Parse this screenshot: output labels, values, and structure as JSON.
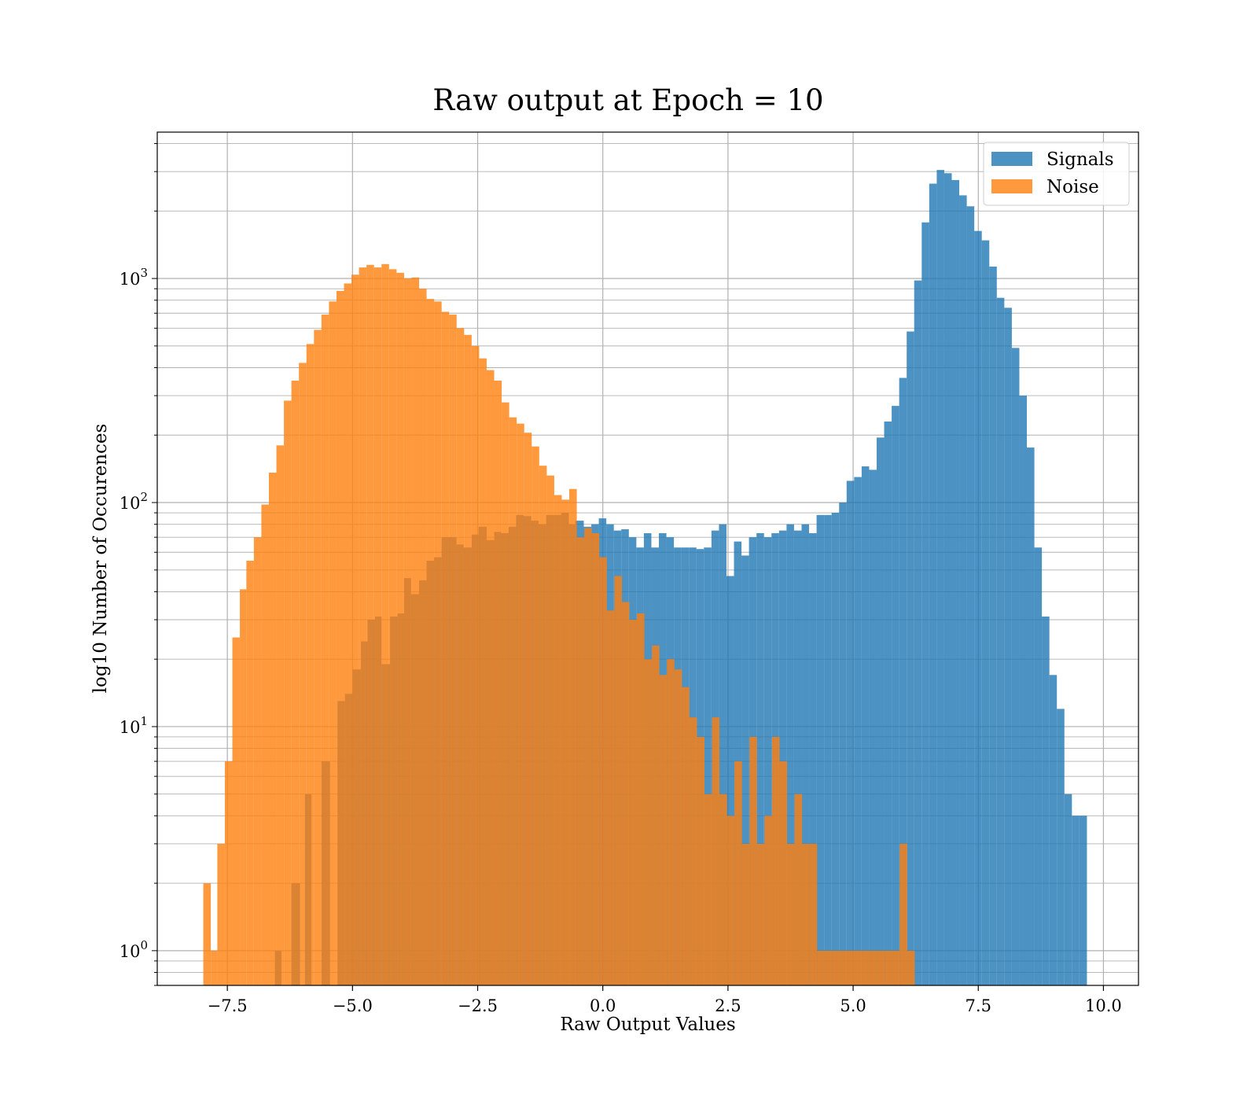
{
  "chart_data": {
    "type": "bar",
    "title": "Raw output at Epoch = 10",
    "xlabel": "Raw Output Values",
    "ylabel": "log10 Number of Occurences",
    "yscale": "log",
    "xlim": [
      -8.9,
      10.7
    ],
    "ylim": [
      0.7,
      4500
    ],
    "grid": true,
    "legend_position": "top-right",
    "x_ticks": [
      -7.5,
      -5.0,
      -2.5,
      0.0,
      2.5,
      5.0,
      7.5,
      10.0
    ],
    "x_tick_labels": [
      "−7.5",
      "−5.0",
      "−2.5",
      "0.0",
      "2.5",
      "5.0",
      "7.5",
      "10.0"
    ],
    "y_ticks": [
      1,
      10,
      100,
      1000
    ],
    "y_tick_labels": [
      {
        "base": "10",
        "exp": "0"
      },
      {
        "base": "10",
        "exp": "1"
      },
      {
        "base": "10",
        "exp": "2"
      },
      {
        "base": "10",
        "exp": "3"
      }
    ],
    "series": [
      {
        "name": "Signals",
        "color": "#1f77b4",
        "opacity": 0.8,
        "bins": [
          [
            -6.55,
            -6.42,
            1
          ],
          [
            -6.22,
            -6.05,
            2
          ],
          [
            -5.95,
            -5.82,
            5
          ],
          [
            -5.62,
            -5.45,
            7
          ],
          [
            -5.3,
            -5.15,
            13
          ],
          [
            -5.15,
            -5.0,
            14
          ],
          [
            -5.0,
            -4.83,
            18
          ],
          [
            -4.83,
            -4.7,
            24
          ],
          [
            -4.7,
            -4.55,
            30
          ],
          [
            -4.55,
            -4.42,
            31
          ],
          [
            -4.42,
            -4.25,
            19
          ],
          [
            -4.25,
            -4.1,
            31
          ],
          [
            -4.1,
            -3.97,
            32
          ],
          [
            -3.97,
            -3.83,
            46
          ],
          [
            -3.83,
            -3.67,
            39
          ],
          [
            -3.67,
            -3.52,
            45
          ],
          [
            -3.52,
            -3.37,
            55
          ],
          [
            -3.37,
            -3.22,
            57
          ],
          [
            -3.22,
            -3.08,
            70
          ],
          [
            -3.08,
            -2.92,
            70
          ],
          [
            -2.92,
            -2.78,
            65
          ],
          [
            -2.78,
            -2.62,
            63
          ],
          [
            -2.62,
            -2.48,
            72
          ],
          [
            -2.48,
            -2.32,
            78
          ],
          [
            -2.32,
            -2.17,
            68
          ],
          [
            -2.17,
            -2.03,
            74
          ],
          [
            -2.03,
            -1.88,
            73
          ],
          [
            -1.88,
            -1.73,
            78
          ],
          [
            -1.73,
            -1.58,
            88
          ],
          [
            -1.58,
            -1.43,
            87
          ],
          [
            -1.43,
            -1.28,
            83
          ],
          [
            -1.28,
            -1.13,
            80
          ],
          [
            -1.13,
            -0.98,
            88
          ],
          [
            -0.98,
            -0.83,
            88
          ],
          [
            -0.83,
            -0.68,
            90
          ],
          [
            -0.68,
            -0.55,
            80
          ],
          [
            -0.55,
            -0.38,
            83
          ],
          [
            -0.38,
            -0.23,
            78
          ],
          [
            -0.23,
            -0.08,
            80
          ],
          [
            -0.08,
            0.07,
            85
          ],
          [
            0.07,
            0.22,
            80
          ],
          [
            0.22,
            0.37,
            75
          ],
          [
            0.37,
            0.52,
            76
          ],
          [
            0.52,
            0.67,
            70
          ],
          [
            0.67,
            0.82,
            63
          ],
          [
            0.82,
            0.97,
            73
          ],
          [
            0.97,
            1.12,
            63
          ],
          [
            1.12,
            1.27,
            73
          ],
          [
            1.27,
            1.42,
            70
          ],
          [
            1.42,
            1.57,
            63
          ],
          [
            1.57,
            1.72,
            63
          ],
          [
            1.72,
            1.87,
            63
          ],
          [
            1.87,
            2.02,
            62
          ],
          [
            2.02,
            2.17,
            63
          ],
          [
            2.17,
            2.32,
            75
          ],
          [
            2.32,
            2.47,
            80
          ],
          [
            2.47,
            2.62,
            47
          ],
          [
            2.62,
            2.77,
            67
          ],
          [
            2.77,
            2.92,
            58
          ],
          [
            2.92,
            3.07,
            70
          ],
          [
            3.07,
            3.22,
            73
          ],
          [
            3.22,
            3.37,
            70
          ],
          [
            3.37,
            3.52,
            73
          ],
          [
            3.52,
            3.67,
            75
          ],
          [
            3.67,
            3.82,
            80
          ],
          [
            3.82,
            3.97,
            75
          ],
          [
            3.97,
            4.12,
            80
          ],
          [
            4.12,
            4.27,
            73
          ],
          [
            4.27,
            4.42,
            88
          ],
          [
            4.42,
            4.57,
            88
          ],
          [
            4.57,
            4.72,
            90
          ],
          [
            4.72,
            4.87,
            100
          ],
          [
            4.87,
            5.02,
            125
          ],
          [
            5.02,
            5.17,
            130
          ],
          [
            5.17,
            5.32,
            145
          ],
          [
            5.32,
            5.47,
            140
          ],
          [
            5.47,
            5.62,
            195
          ],
          [
            5.62,
            5.77,
            230
          ],
          [
            5.77,
            5.92,
            270
          ],
          [
            5.92,
            6.07,
            360
          ],
          [
            6.07,
            6.22,
            580
          ],
          [
            6.22,
            6.37,
            980
          ],
          [
            6.37,
            6.52,
            1780
          ],
          [
            6.52,
            6.67,
            2650
          ],
          [
            6.67,
            6.82,
            3050
          ],
          [
            6.82,
            6.97,
            2950
          ],
          [
            6.97,
            7.12,
            2750
          ],
          [
            7.12,
            7.27,
            2350
          ],
          [
            7.27,
            7.42,
            2100
          ],
          [
            7.42,
            7.57,
            1630
          ],
          [
            7.57,
            7.72,
            1480
          ],
          [
            7.72,
            7.87,
            1130
          ],
          [
            7.87,
            8.02,
            820
          ],
          [
            8.02,
            8.17,
            740
          ],
          [
            8.17,
            8.32,
            490
          ],
          [
            8.32,
            8.47,
            300
          ],
          [
            8.47,
            8.62,
            176
          ],
          [
            8.62,
            8.77,
            63
          ],
          [
            8.77,
            8.92,
            31
          ],
          [
            8.92,
            9.07,
            17
          ],
          [
            9.07,
            9.22,
            12
          ],
          [
            9.22,
            9.37,
            5
          ],
          [
            9.37,
            9.52,
            4
          ],
          [
            9.52,
            9.67,
            4
          ]
        ]
      },
      {
        "name": "Noise",
        "color": "#ff7f0e",
        "opacity": 0.8,
        "bins": [
          [
            -7.98,
            -7.83,
            2
          ],
          [
            -7.83,
            -7.7,
            1
          ],
          [
            -7.7,
            -7.55,
            3
          ],
          [
            -7.55,
            -7.4,
            7
          ],
          [
            -7.4,
            -7.25,
            25
          ],
          [
            -7.25,
            -7.12,
            41
          ],
          [
            -7.12,
            -6.97,
            55
          ],
          [
            -6.97,
            -6.82,
            70
          ],
          [
            -6.82,
            -6.67,
            98
          ],
          [
            -6.67,
            -6.52,
            136
          ],
          [
            -6.52,
            -6.37,
            180
          ],
          [
            -6.37,
            -6.22,
            285
          ],
          [
            -6.22,
            -6.07,
            350
          ],
          [
            -6.07,
            -5.92,
            420
          ],
          [
            -5.92,
            -5.77,
            510
          ],
          [
            -5.77,
            -5.62,
            590
          ],
          [
            -5.62,
            -5.47,
            690
          ],
          [
            -5.47,
            -5.32,
            790
          ],
          [
            -5.32,
            -5.17,
            880
          ],
          [
            -5.17,
            -5.02,
            950
          ],
          [
            -5.02,
            -4.87,
            1040
          ],
          [
            -4.87,
            -4.72,
            1120
          ],
          [
            -4.72,
            -4.57,
            1150
          ],
          [
            -4.57,
            -4.42,
            1120
          ],
          [
            -4.42,
            -4.27,
            1160
          ],
          [
            -4.27,
            -4.12,
            1100
          ],
          [
            -4.12,
            -3.97,
            1060
          ],
          [
            -3.97,
            -3.82,
            1000
          ],
          [
            -3.82,
            -3.67,
            1010
          ],
          [
            -3.67,
            -3.52,
            900
          ],
          [
            -3.52,
            -3.37,
            810
          ],
          [
            -3.37,
            -3.22,
            790
          ],
          [
            -3.22,
            -3.07,
            710
          ],
          [
            -3.07,
            -2.92,
            690
          ],
          [
            -2.92,
            -2.77,
            600
          ],
          [
            -2.77,
            -2.62,
            560
          ],
          [
            -2.62,
            -2.47,
            500
          ],
          [
            -2.47,
            -2.32,
            440
          ],
          [
            -2.32,
            -2.17,
            390
          ],
          [
            -2.17,
            -2.02,
            350
          ],
          [
            -2.02,
            -1.87,
            280
          ],
          [
            -1.87,
            -1.72,
            240
          ],
          [
            -1.72,
            -1.57,
            225
          ],
          [
            -1.57,
            -1.42,
            205
          ],
          [
            -1.42,
            -1.27,
            178
          ],
          [
            -1.27,
            -1.12,
            146
          ],
          [
            -1.12,
            -0.97,
            132
          ],
          [
            -0.97,
            -0.82,
            108
          ],
          [
            -0.82,
            -0.67,
            103
          ],
          [
            -0.67,
            -0.52,
            115
          ],
          [
            -0.52,
            -0.37,
            70
          ],
          [
            -0.37,
            -0.22,
            77
          ],
          [
            -0.22,
            -0.07,
            73
          ],
          [
            -0.07,
            0.08,
            57
          ],
          [
            0.08,
            0.23,
            33
          ],
          [
            0.23,
            0.38,
            47
          ],
          [
            0.38,
            0.53,
            36
          ],
          [
            0.53,
            0.68,
            30
          ],
          [
            0.68,
            0.83,
            32
          ],
          [
            0.83,
            0.98,
            20
          ],
          [
            0.98,
            1.13,
            23
          ],
          [
            1.13,
            1.28,
            17
          ],
          [
            1.28,
            1.43,
            20
          ],
          [
            1.43,
            1.58,
            18
          ],
          [
            1.58,
            1.73,
            15
          ],
          [
            1.73,
            1.88,
            11
          ],
          [
            1.88,
            2.03,
            9
          ],
          [
            2.03,
            2.18,
            5
          ],
          [
            2.18,
            2.33,
            11
          ],
          [
            2.33,
            2.48,
            5
          ],
          [
            2.48,
            2.63,
            4
          ],
          [
            2.63,
            2.78,
            7
          ],
          [
            2.78,
            2.93,
            3
          ],
          [
            2.93,
            3.08,
            9
          ],
          [
            3.08,
            3.23,
            3
          ],
          [
            3.23,
            3.38,
            4
          ],
          [
            3.38,
            3.53,
            9
          ],
          [
            3.53,
            3.68,
            7
          ],
          [
            3.68,
            3.83,
            3
          ],
          [
            3.83,
            3.98,
            5
          ],
          [
            3.98,
            4.13,
            3
          ],
          [
            4.13,
            4.28,
            3
          ],
          [
            4.28,
            4.43,
            1
          ],
          [
            4.43,
            4.58,
            1
          ],
          [
            4.58,
            4.73,
            1
          ],
          [
            4.73,
            4.88,
            1
          ],
          [
            4.88,
            5.03,
            1
          ],
          [
            5.03,
            5.18,
            1
          ],
          [
            5.18,
            5.33,
            1
          ],
          [
            5.33,
            5.48,
            1
          ],
          [
            5.48,
            5.63,
            1
          ],
          [
            5.63,
            5.78,
            1
          ],
          [
            5.78,
            5.93,
            1
          ],
          [
            5.93,
            6.08,
            3
          ],
          [
            6.08,
            6.23,
            1
          ]
        ]
      }
    ]
  }
}
